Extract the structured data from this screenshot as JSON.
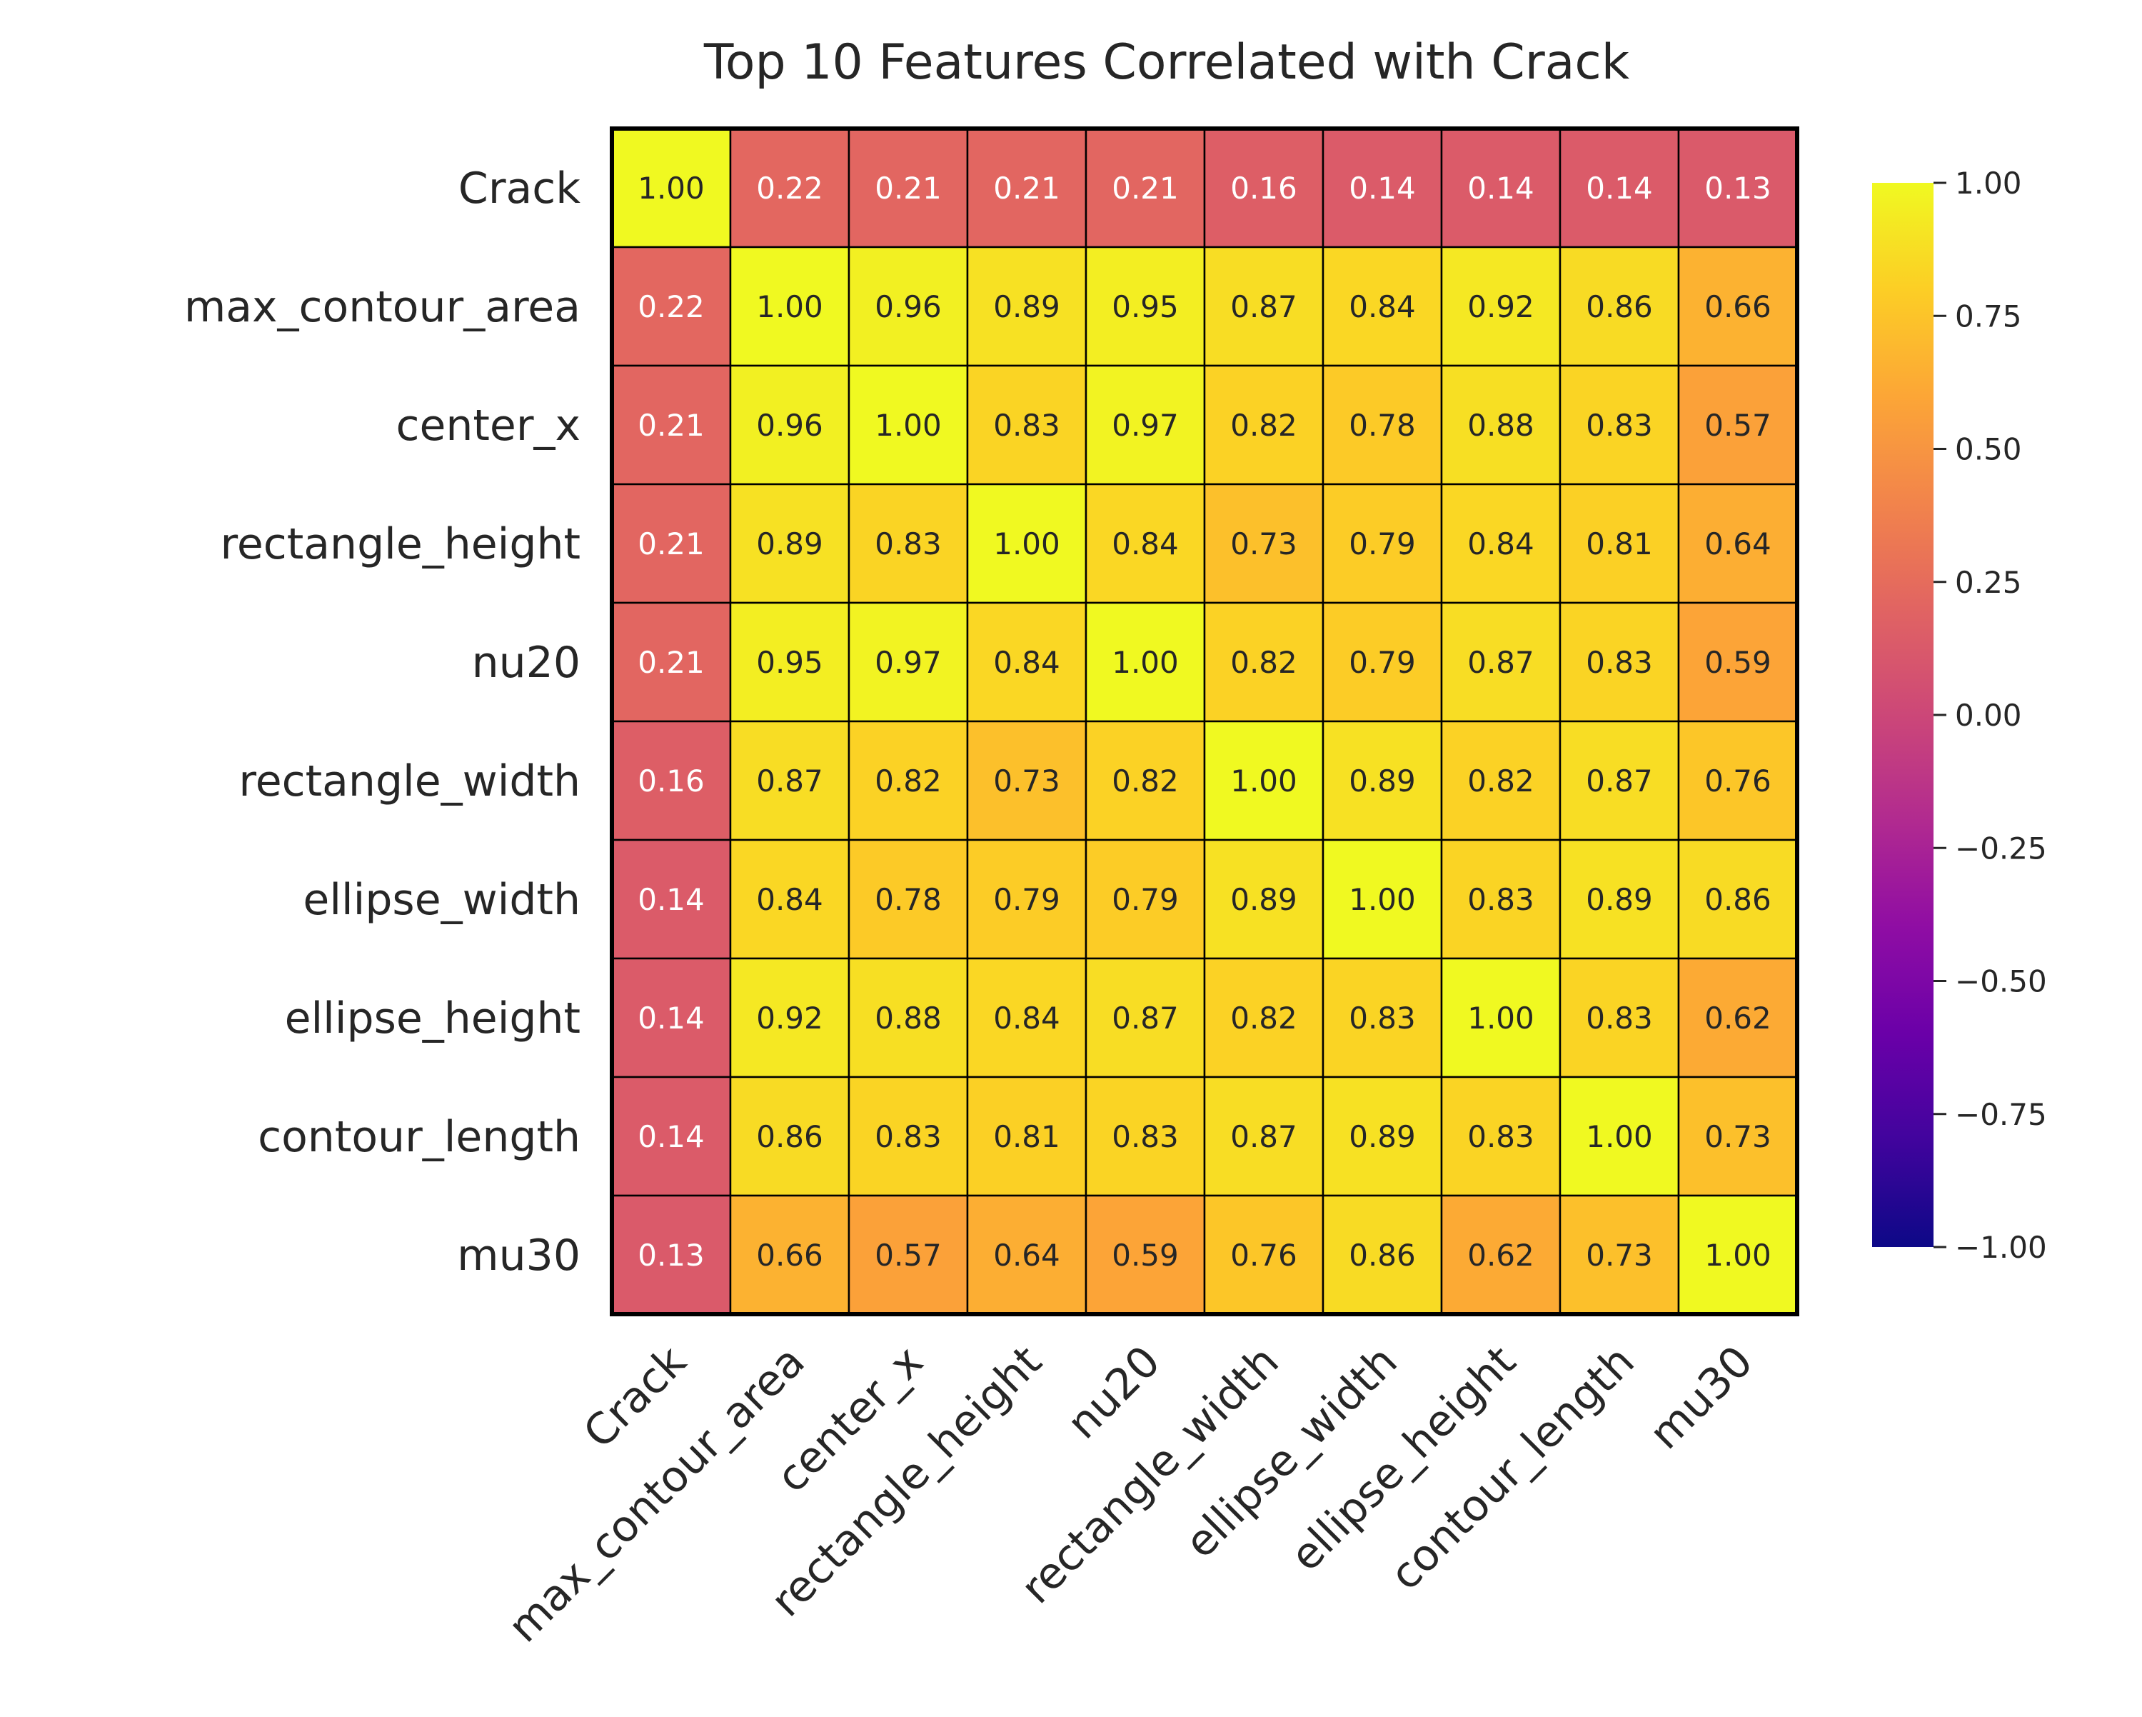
{
  "chart_data": {
    "type": "heatmap",
    "title": "Top 10 Features Correlated with Crack",
    "xlabel": "",
    "ylabel": "",
    "categories": [
      "Crack",
      "max_contour_area",
      "center_x",
      "rectangle_height",
      "nu20",
      "rectangle_width",
      "ellipse_width",
      "ellipse_height",
      "contour_length",
      "mu30"
    ],
    "values": [
      [
        1.0,
        0.22,
        0.21,
        0.21,
        0.21,
        0.16,
        0.14,
        0.14,
        0.14,
        0.13
      ],
      [
        0.22,
        1.0,
        0.96,
        0.89,
        0.95,
        0.87,
        0.84,
        0.92,
        0.86,
        0.66
      ],
      [
        0.21,
        0.96,
        1.0,
        0.83,
        0.97,
        0.82,
        0.78,
        0.88,
        0.83,
        0.57
      ],
      [
        0.21,
        0.89,
        0.83,
        1.0,
        0.84,
        0.73,
        0.79,
        0.84,
        0.81,
        0.64
      ],
      [
        0.21,
        0.95,
        0.97,
        0.84,
        1.0,
        0.82,
        0.79,
        0.87,
        0.83,
        0.59
      ],
      [
        0.16,
        0.87,
        0.82,
        0.73,
        0.82,
        1.0,
        0.89,
        0.82,
        0.87,
        0.76
      ],
      [
        0.14,
        0.84,
        0.78,
        0.79,
        0.79,
        0.89,
        1.0,
        0.83,
        0.89,
        0.86
      ],
      [
        0.14,
        0.92,
        0.88,
        0.84,
        0.87,
        0.82,
        0.83,
        1.0,
        0.83,
        0.62
      ],
      [
        0.14,
        0.86,
        0.83,
        0.81,
        0.83,
        0.87,
        0.89,
        0.83,
        1.0,
        0.73
      ],
      [
        0.13,
        0.66,
        0.57,
        0.64,
        0.59,
        0.76,
        0.86,
        0.62,
        0.73,
        1.0
      ]
    ],
    "value_format": "0.00",
    "colormap": "plasma",
    "vmin": -1.0,
    "vmax": 1.0,
    "colorbar_ticks": [
      "1.00",
      "0.75",
      "0.50",
      "0.25",
      "0.00",
      "−0.25",
      "−0.50",
      "−0.75",
      "−1.00"
    ],
    "colorbar_tick_values": [
      1.0,
      0.75,
      0.5,
      0.25,
      0.0,
      -0.25,
      -0.5,
      -0.75,
      -1.0
    ],
    "cell_border_color": "#000000",
    "text_color_dark": "#262626",
    "text_color_light": "#ffffff"
  }
}
